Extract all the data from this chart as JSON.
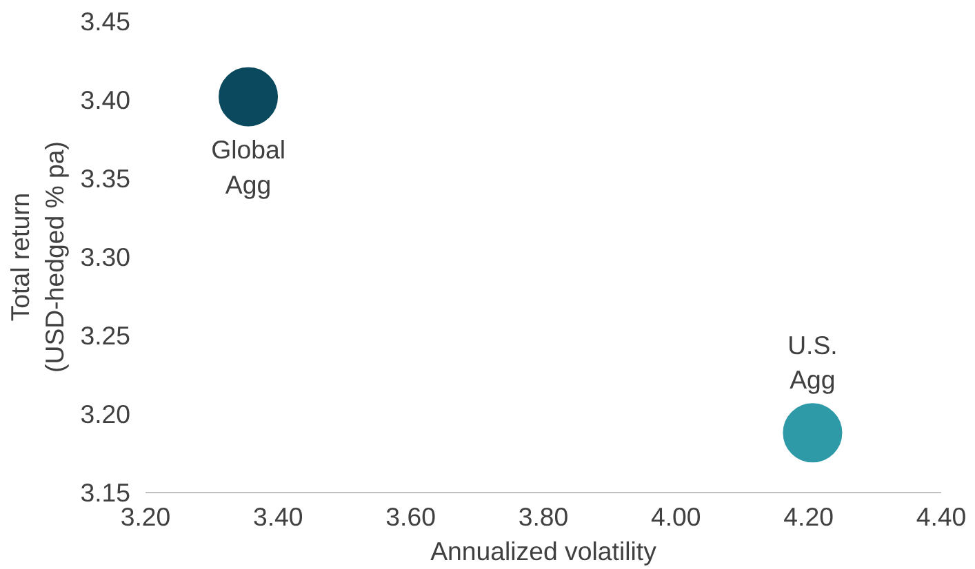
{
  "chart_data": {
    "type": "scatter",
    "xlabel": "Annualized volatility",
    "ylabel": "Total return\n(USD-hedged % pa)",
    "series": [
      {
        "name": "Global Agg",
        "color": "#0b4a5e",
        "x": [
          3.355
        ],
        "values": [
          3.402
        ]
      },
      {
        "name": "U.S. Agg",
        "color": "#2e9aa8",
        "x": [
          4.206
        ],
        "values": [
          3.188
        ]
      }
    ],
    "marker": "circle",
    "legend": false,
    "grid": false,
    "xlim": [
      3.2,
      4.4
    ],
    "xticks": [
      {
        "value": 3.2,
        "label": "3.20"
      },
      {
        "value": 3.4,
        "label": "3.40"
      },
      {
        "value": 3.6,
        "label": "3.60"
      },
      {
        "value": 3.8,
        "label": "3.80"
      },
      {
        "value": 4.0,
        "label": "4.00"
      },
      {
        "value": 4.2,
        "label": "4.20"
      },
      {
        "value": 4.4,
        "label": "4.40"
      }
    ],
    "ylim": [
      3.15,
      3.45
    ],
    "yticks": [
      {
        "value": 3.15,
        "label": "3.15"
      },
      {
        "value": 3.2,
        "label": "3.20"
      },
      {
        "value": 3.25,
        "label": "3.25"
      },
      {
        "value": 3.3,
        "label": "3.30"
      },
      {
        "value": 3.35,
        "label": "3.35"
      },
      {
        "value": 3.4,
        "label": "3.40"
      },
      {
        "value": 3.45,
        "label": "3.45"
      }
    ]
  }
}
